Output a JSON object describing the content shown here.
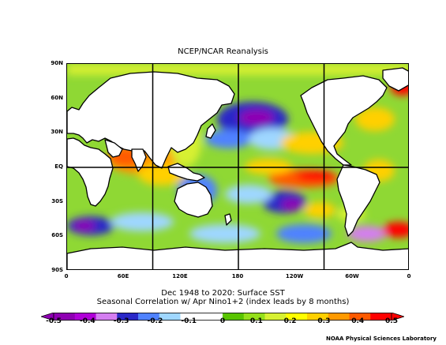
{
  "title": "NCEP/NCAR Reanalysis",
  "subtitle_line1": "Dec 1948 to 2020: Surface SST",
  "subtitle_line2": "Seasonal Correlation w/ Apr Nino1+2 (index leads by 8 months)",
  "credit": "NOAA Physical Sciences Laboratory",
  "y_ticks": [
    "90N",
    "60N",
    "30N",
    "EQ",
    "30S",
    "60S",
    "90S"
  ],
  "x_ticks": [
    "0",
    "60E",
    "120E",
    "180",
    "120W",
    "60W",
    "0"
  ],
  "colorbar": {
    "ticks": [
      "-0.5",
      "-0.4",
      "-0.3",
      "-0.2",
      "-0.1",
      "0",
      "0.1",
      "0.2",
      "0.3",
      "0.4",
      "0.5"
    ],
    "colors": [
      "#8f00b3",
      "#b000d8",
      "#d47ef0",
      "#2a28c8",
      "#4f82ff",
      "#9fd7ff",
      "#ffffff",
      "#ffffff",
      "#59c400",
      "#95e01b",
      "#d7f032",
      "#ffff00",
      "#ffd000",
      "#ff9a00",
      "#ff5a00",
      "#ff0000"
    ]
  },
  "colors": {
    "land": "#ffffff",
    "background_field": "#8fd834",
    "coast": "#000000"
  }
}
